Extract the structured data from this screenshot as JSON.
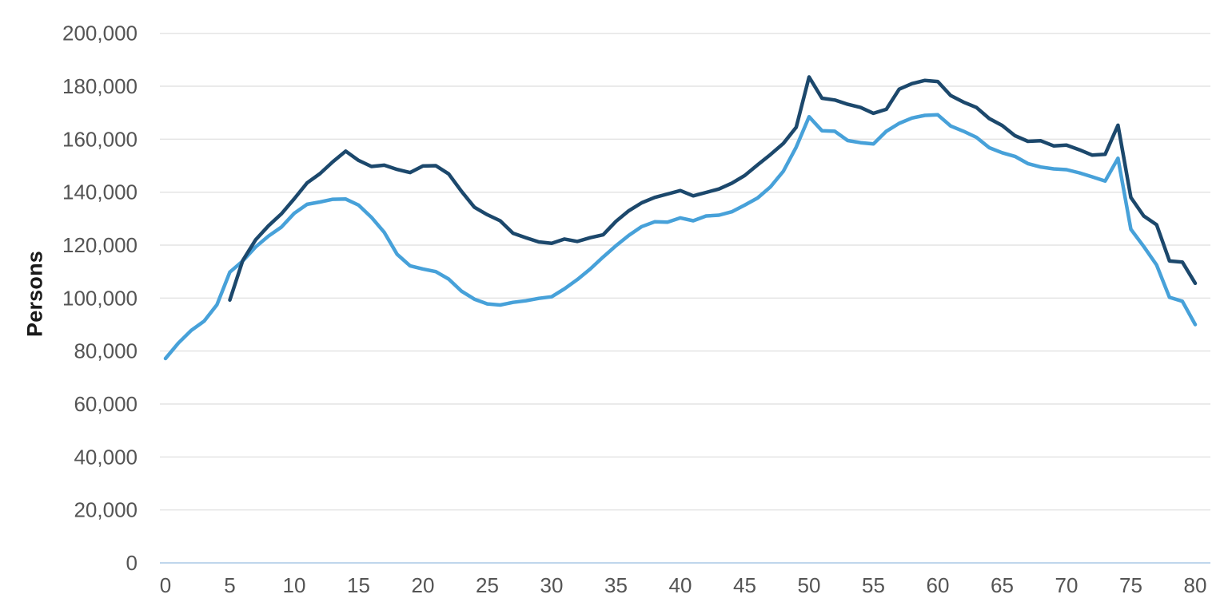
{
  "chart_data": {
    "type": "line",
    "title": "",
    "ylabel": "Persons",
    "xlabel": "",
    "legend": "none",
    "grid": true,
    "colors": {
      "gridline": "#e4e4e4",
      "baseline": "#bfd6ec",
      "dark_line": "#1c486c",
      "light_line": "#47a1d9"
    },
    "x_axis": {
      "min": 0,
      "max": 80,
      "tick_step": 5,
      "ticks": [
        {
          "value": 0,
          "label": "0"
        },
        {
          "value": 5,
          "label": "5"
        },
        {
          "value": 10,
          "label": "10"
        },
        {
          "value": 15,
          "label": "15"
        },
        {
          "value": 20,
          "label": "20"
        },
        {
          "value": 25,
          "label": "25"
        },
        {
          "value": 30,
          "label": "30"
        },
        {
          "value": 35,
          "label": "35"
        },
        {
          "value": 40,
          "label": "40"
        },
        {
          "value": 45,
          "label": "45"
        },
        {
          "value": 50,
          "label": "50"
        },
        {
          "value": 55,
          "label": "55"
        },
        {
          "value": 60,
          "label": "60"
        },
        {
          "value": 65,
          "label": "65"
        },
        {
          "value": 70,
          "label": "70"
        },
        {
          "value": 75,
          "label": "75"
        },
        {
          "value": 80,
          "label": "80"
        }
      ]
    },
    "y_axis": {
      "min": 0,
      "max": 200000,
      "tick_step": 20000,
      "ticks": [
        {
          "value": 0,
          "label": "0"
        },
        {
          "value": 20000,
          "label": "20,000"
        },
        {
          "value": 40000,
          "label": "40,000"
        },
        {
          "value": 60000,
          "label": "60,000"
        },
        {
          "value": 80000,
          "label": "80,000"
        },
        {
          "value": 100000,
          "label": "100,000"
        },
        {
          "value": 120000,
          "label": "120,000"
        },
        {
          "value": 140000,
          "label": "140,000"
        },
        {
          "value": 160000,
          "label": "160,000"
        },
        {
          "value": 180000,
          "label": "180,000"
        },
        {
          "value": 200000,
          "label": "200,000"
        }
      ]
    },
    "series": [
      {
        "id": "series-light-blue",
        "color": "#47a1d9",
        "points": [
          [
            0,
            77200
          ],
          [
            1,
            83000
          ],
          [
            2,
            87800
          ],
          [
            3,
            91300
          ],
          [
            4,
            97500
          ],
          [
            5,
            109800
          ],
          [
            6,
            114000
          ],
          [
            7,
            119300
          ],
          [
            8,
            123400
          ],
          [
            9,
            126800
          ],
          [
            10,
            132000
          ],
          [
            11,
            135400
          ],
          [
            12,
            136300
          ],
          [
            13,
            137300
          ],
          [
            14,
            137400
          ],
          [
            15,
            135100
          ],
          [
            16,
            130500
          ],
          [
            17,
            124800
          ],
          [
            18,
            116500
          ],
          [
            19,
            112200
          ],
          [
            20,
            111000
          ],
          [
            21,
            110000
          ],
          [
            22,
            107200
          ],
          [
            23,
            102600
          ],
          [
            24,
            99600
          ],
          [
            25,
            97800
          ],
          [
            26,
            97400
          ],
          [
            27,
            98400
          ],
          [
            28,
            99000
          ],
          [
            29,
            99900
          ],
          [
            30,
            100500
          ],
          [
            31,
            103500
          ],
          [
            32,
            107000
          ],
          [
            33,
            111000
          ],
          [
            34,
            115500
          ],
          [
            35,
            119800
          ],
          [
            36,
            123700
          ],
          [
            37,
            127000
          ],
          [
            38,
            128800
          ],
          [
            39,
            128700
          ],
          [
            40,
            130300
          ],
          [
            41,
            129200
          ],
          [
            42,
            131000
          ],
          [
            43,
            131300
          ],
          [
            44,
            132600
          ],
          [
            45,
            135100
          ],
          [
            46,
            137800
          ],
          [
            47,
            142000
          ],
          [
            48,
            147900
          ],
          [
            49,
            157000
          ],
          [
            50,
            168500
          ],
          [
            51,
            163200
          ],
          [
            52,
            163000
          ],
          [
            53,
            159500
          ],
          [
            54,
            158700
          ],
          [
            55,
            158200
          ],
          [
            56,
            163000
          ],
          [
            57,
            166000
          ],
          [
            58,
            168000
          ],
          [
            59,
            169000
          ],
          [
            60,
            169200
          ],
          [
            61,
            165000
          ],
          [
            62,
            163000
          ],
          [
            63,
            160700
          ],
          [
            64,
            156800
          ],
          [
            65,
            154900
          ],
          [
            66,
            153500
          ],
          [
            67,
            150800
          ],
          [
            68,
            149500
          ],
          [
            69,
            148800
          ],
          [
            70,
            148500
          ],
          [
            71,
            147300
          ],
          [
            72,
            145800
          ],
          [
            73,
            144200
          ],
          [
            74,
            152800
          ],
          [
            75,
            126000
          ],
          [
            76,
            119500
          ],
          [
            77,
            112500
          ],
          [
            78,
            100300
          ],
          [
            79,
            98800
          ],
          [
            80,
            90000
          ]
        ]
      },
      {
        "id": "series-dark-navy",
        "color": "#1c486c",
        "points": [
          [
            5,
            99300
          ],
          [
            6,
            114200
          ],
          [
            7,
            122000
          ],
          [
            8,
            127300
          ],
          [
            9,
            131800
          ],
          [
            10,
            137500
          ],
          [
            11,
            143500
          ],
          [
            12,
            147000
          ],
          [
            13,
            151500
          ],
          [
            14,
            155500
          ],
          [
            15,
            152000
          ],
          [
            16,
            149700
          ],
          [
            17,
            150200
          ],
          [
            18,
            148600
          ],
          [
            19,
            147400
          ],
          [
            20,
            149900
          ],
          [
            21,
            150000
          ],
          [
            22,
            146900
          ],
          [
            23,
            140300
          ],
          [
            24,
            134300
          ],
          [
            25,
            131500
          ],
          [
            26,
            129200
          ],
          [
            27,
            124500
          ],
          [
            28,
            122800
          ],
          [
            29,
            121200
          ],
          [
            30,
            120700
          ],
          [
            31,
            122300
          ],
          [
            32,
            121400
          ],
          [
            33,
            122800
          ],
          [
            34,
            123900
          ],
          [
            35,
            129000
          ],
          [
            36,
            133000
          ],
          [
            37,
            136000
          ],
          [
            38,
            138000
          ],
          [
            39,
            139300
          ],
          [
            40,
            140600
          ],
          [
            41,
            138600
          ],
          [
            42,
            139900
          ],
          [
            43,
            141200
          ],
          [
            44,
            143400
          ],
          [
            45,
            146300
          ],
          [
            46,
            150300
          ],
          [
            47,
            154200
          ],
          [
            48,
            158400
          ],
          [
            49,
            164500
          ],
          [
            50,
            183500
          ],
          [
            51,
            175500
          ],
          [
            52,
            174800
          ],
          [
            53,
            173200
          ],
          [
            54,
            172000
          ],
          [
            55,
            169800
          ],
          [
            56,
            171300
          ],
          [
            57,
            178900
          ],
          [
            58,
            181000
          ],
          [
            59,
            182200
          ],
          [
            60,
            181800
          ],
          [
            61,
            176500
          ],
          [
            62,
            174000
          ],
          [
            63,
            172000
          ],
          [
            64,
            167800
          ],
          [
            65,
            165200
          ],
          [
            66,
            161300
          ],
          [
            67,
            159200
          ],
          [
            68,
            159400
          ],
          [
            69,
            157500
          ],
          [
            70,
            157800
          ],
          [
            71,
            156000
          ],
          [
            72,
            154000
          ],
          [
            73,
            154300
          ],
          [
            74,
            165300
          ],
          [
            75,
            138000
          ],
          [
            76,
            131000
          ],
          [
            77,
            127700
          ],
          [
            78,
            114000
          ],
          [
            79,
            113600
          ],
          [
            80,
            105600
          ]
        ]
      }
    ]
  }
}
